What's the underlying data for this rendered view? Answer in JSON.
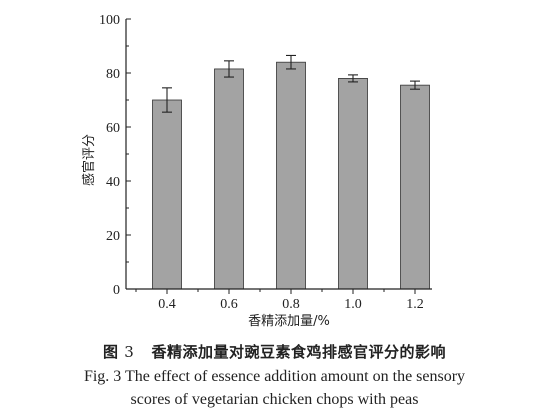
{
  "chart_data": {
    "type": "bar",
    "categories": [
      "0.4",
      "0.6",
      "0.8",
      "1.0",
      "1.2"
    ],
    "values": [
      70.0,
      81.5,
      84.0,
      78.0,
      75.5
    ],
    "errors": [
      4.5,
      3.0,
      2.5,
      1.3,
      1.5
    ],
    "xlabel": "香精添加量/%",
    "ylabel": "感官评分",
    "ylim": [
      0,
      100
    ],
    "yticks": [
      "0",
      "20",
      "40",
      "60",
      "80",
      "100"
    ],
    "grid": false,
    "bar_color": "#a3a3a3",
    "error_bars": true
  },
  "caption": {
    "cn_prefix": "图",
    "cn_number": "3",
    "cn_title": "香精添加量对豌豆素食鸡排感官评分的影响",
    "en_line1": "Fig. 3 The effect of essence addition amount on the sensory",
    "en_line2": "scores of vegetarian chicken chops with peas"
  }
}
